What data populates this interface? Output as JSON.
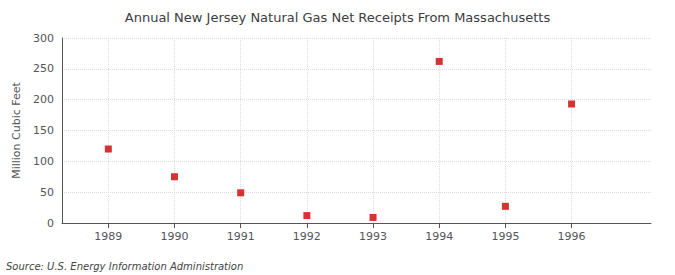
{
  "chart_data": {
    "type": "scatter",
    "title": "Annual New Jersey Natural Gas Net Receipts From Massachusetts",
    "ylabel": "Million Cubic Feet",
    "annotation": "Source: U.S. Energy Information Administration",
    "x": [
      1989,
      1990,
      1991,
      1992,
      1993,
      1994,
      1995,
      1996
    ],
    "values": [
      120,
      75,
      49,
      12,
      9,
      262,
      27,
      193
    ],
    "color": "#cc0000",
    "marker": "square",
    "xlim": [
      1988.3,
      1997.2
    ],
    "xticks": [
      1989,
      1990,
      1991,
      1992,
      1993,
      1994,
      1995,
      1996
    ],
    "ylim": [
      0,
      300
    ],
    "yticks": [
      0,
      50,
      100,
      150,
      200,
      250,
      300
    ],
    "grid": true
  }
}
